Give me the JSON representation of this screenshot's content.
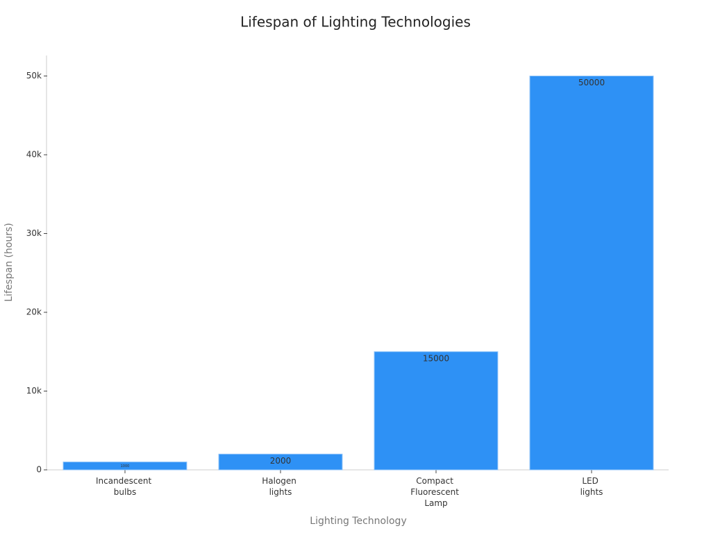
{
  "chart_data": {
    "type": "bar",
    "title": "Lifespan of Lighting Technologies",
    "x_label": "Lighting Technology",
    "y_label": "Lifespan (hours)",
    "categories": [
      "Incandescent bulbs",
      "Halogen lights",
      "Compact Fluorescent Lamp",
      "LED lights"
    ],
    "values": [
      1000,
      2000,
      15000,
      50000
    ],
    "color": "#2e91f5",
    "ylim": [
      0,
      52600
    ],
    "yticks": [
      0,
      {
        "value": 10000,
        "label": "10k"
      },
      {
        "value": 20000,
        "label": "20k"
      },
      {
        "value": 30000,
        "label": "30k"
      },
      {
        "value": 40000,
        "label": "40k"
      },
      {
        "value": 50000,
        "label": "50k"
      }
    ],
    "grid": false
  }
}
